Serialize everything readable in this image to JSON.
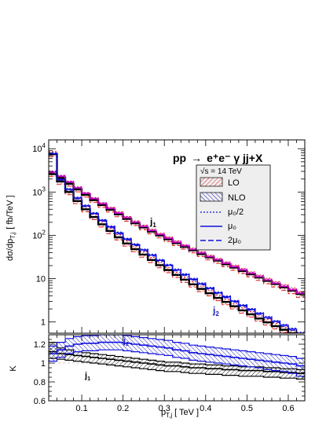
{
  "chart_data": [
    {
      "type": "line",
      "style": "histogram-step",
      "title": "pp → e⁺e⁻ γ jj+X",
      "title_parts": {
        "process_lhs": "pp",
        "arrow": "→",
        "process_rhs": "e⁺e⁻ γ jj+X"
      },
      "ylabel": "dσ/dp_{T,j} [ fb/TeV ]",
      "ylabel_parts": {
        "main": "dσ/dp",
        "sub": "T,j",
        "unit": "[ fb/TeV ]"
      },
      "yscale": "log",
      "ylim": [
        0.55,
        16000
      ],
      "yticks": [
        1,
        10,
        100,
        1000,
        10000
      ],
      "ytick_labels": [
        {
          "mant": "1",
          "exp": ""
        },
        {
          "mant": "10",
          "exp": ""
        },
        {
          "mant": "10",
          "exp": "2"
        },
        {
          "mant": "10",
          "exp": "3"
        },
        {
          "mant": "10",
          "exp": "4"
        }
      ],
      "xlim": [
        0.02,
        0.64
      ],
      "legend_placement": "top-right",
      "legend": {
        "header": "√s = 14 TeV",
        "items": [
          {
            "label": "LO",
            "style": "red-hatch-box"
          },
          {
            "label": "NLO",
            "style": "blue-hatch-box"
          },
          {
            "label": "μ₀/2",
            "style": "dotted"
          },
          {
            "label": "μ₀",
            "style": "solid"
          },
          {
            "label": "2μ₀",
            "style": "dashed"
          }
        ]
      },
      "annotations": [
        {
          "text": "j",
          "sub": "1",
          "color": "#000000"
        },
        {
          "text": "j",
          "sub": "2",
          "color": "#2020c0"
        }
      ],
      "bin_edges": [
        0.02,
        0.04,
        0.06,
        0.08,
        0.1,
        0.12,
        0.14,
        0.16,
        0.18,
        0.2,
        0.22,
        0.24,
        0.26,
        0.28,
        0.3,
        0.32,
        0.34,
        0.36,
        0.38,
        0.4,
        0.42,
        0.44,
        0.46,
        0.48,
        0.5,
        0.52,
        0.54,
        0.56,
        0.58,
        0.6,
        0.62,
        0.64
      ],
      "series": [
        {
          "jet": "j1",
          "order": "LO",
          "color": "#000000",
          "values": [
            2600,
            2100,
            1550,
            1150,
            860,
            650,
            500,
            390,
            305,
            240,
            190,
            152,
            122,
            99,
            81,
            66,
            54,
            45,
            37,
            31,
            26,
            21.5,
            18,
            15,
            12.6,
            10.6,
            8.9,
            7.5,
            6.3,
            5.3,
            4.4
          ],
          "band_lo": [
            2300,
            1850,
            1370,
            1010,
            760,
            575,
            440,
            345,
            270,
            212,
            168,
            134,
            108,
            87,
            71,
            58,
            48,
            39.5,
            32.5,
            27,
            22.5,
            18.8,
            15.6,
            13,
            10.9,
            9.1,
            7.6,
            6.4,
            5.4,
            4.5,
            3.7
          ],
          "band_hi": [
            2950,
            2380,
            1760,
            1300,
            975,
            740,
            570,
            445,
            348,
            274,
            216,
            173,
            139,
            112,
            92,
            75,
            61,
            51,
            42,
            35,
            29.5,
            24.5,
            20.5,
            17.2,
            14.4,
            12.1,
            10.2,
            8.6,
            7.3,
            6.1,
            5.1
          ]
        },
        {
          "jet": "j1",
          "order": "NLO",
          "color": "#c000c0",
          "values": [
            2900,
            2320,
            1700,
            1250,
            930,
            700,
            535,
            415,
            325,
            255,
            200,
            160,
            128,
            104,
            85,
            69,
            57,
            47,
            39,
            32,
            27,
            22.5,
            18.8,
            15.8,
            13.2,
            11.1,
            9.3,
            7.8,
            6.6,
            5.5,
            4.6
          ],
          "band_lo": [
            2760,
            2210,
            1620,
            1190,
            885,
            665,
            508,
            394,
            309,
            242,
            190,
            152,
            122,
            99,
            81,
            66,
            54,
            44.5,
            37,
            30.5,
            25.6,
            21.4,
            17.8,
            15,
            12.5,
            10.5,
            8.8,
            7.4,
            6.2,
            5.2,
            4.35
          ],
          "band_hi": [
            3050,
            2440,
            1790,
            1320,
            980,
            738,
            565,
            438,
            343,
            269,
            211,
            169,
            135,
            110,
            90,
            73,
            60,
            49.5,
            41,
            33.8,
            28.5,
            23.7,
            19.8,
            16.7,
            13.9,
            11.7,
            9.8,
            8.2,
            7,
            5.8,
            4.85
          ]
        },
        {
          "jet": "j2",
          "order": "LO",
          "color": "#000000",
          "values": [
            7500,
            1750,
            1000,
            620,
            400,
            265,
            180,
            126,
            90,
            65,
            48,
            36,
            27,
            20.5,
            15.8,
            12.2,
            9.5,
            7.4,
            5.8,
            4.6,
            3.6,
            2.9,
            2.3,
            1.85,
            1.5,
            1.2,
            0.98,
            0.8,
            0.66,
            0.55,
            0.46
          ],
          "band_lo": [
            6500,
            1520,
            870,
            540,
            348,
            230,
            156,
            109,
            78,
            56.5,
            41.7,
            31.3,
            23.5,
            17.8,
            13.7,
            10.6,
            8.2,
            6.4,
            5,
            4,
            3.1,
            2.5,
            2,
            1.6,
            1.3,
            1.04,
            0.85,
            0.69,
            0.57,
            0.47,
            0.39
          ],
          "band_hi": [
            8700,
            2020,
            1150,
            715,
            461,
            305,
            207,
            145,
            104,
            75,
            55,
            41.5,
            31,
            23.6,
            18.2,
            14,
            10.9,
            8.5,
            6.7,
            5.3,
            4.15,
            3.35,
            2.65,
            2.13,
            1.73,
            1.38,
            1.13,
            0.92,
            0.76,
            0.63,
            0.53
          ]
        },
        {
          "jet": "j2",
          "order": "NLO",
          "color": "#1010e0",
          "values": [
            7700,
            1950,
            1150,
            730,
            480,
            322,
            222,
            157,
            113,
            82,
            61,
            46,
            35,
            26.5,
            20.5,
            15.9,
            12.4,
            9.7,
            7.6,
            6,
            4.7,
            3.8,
            3,
            2.4,
            1.95,
            1.57,
            1.27,
            1.03,
            0.84,
            0.68,
            0.55
          ],
          "band_lo": [
            7300,
            1850,
            1090,
            693,
            456,
            306,
            211,
            149,
            107,
            78,
            58,
            43.7,
            33.2,
            25.2,
            19.5,
            15.1,
            11.8,
            9.2,
            7.2,
            5.7,
            4.47,
            3.6,
            2.85,
            2.28,
            1.85,
            1.49,
            1.2,
            0.97,
            0.79,
            0.64,
            0.52
          ],
          "band_hi": [
            8100,
            2050,
            1210,
            767,
            504,
            338,
            233,
            165,
            119,
            86,
            64,
            48.3,
            36.8,
            27.8,
            21.5,
            16.7,
            13,
            10.2,
            8,
            6.3,
            4.94,
            4,
            3.15,
            2.52,
            2.05,
            1.65,
            1.34,
            1.08,
            0.88,
            0.72,
            0.58
          ]
        }
      ]
    },
    {
      "type": "line",
      "style": "histogram-step",
      "ylabel": "K",
      "xlabel": "p_{T,j} [ TeV ]",
      "xlabel_parts": {
        "main": "p",
        "sub": "T,j",
        "unit": "[ TeV ]"
      },
      "xlim": [
        0.02,
        0.64
      ],
      "ylim": [
        0.6,
        1.3
      ],
      "yticks": [
        0.6,
        0.8,
        1.0,
        1.2
      ],
      "ytick_labels": [
        "0.6",
        "0.8",
        "1",
        "1.2"
      ],
      "xticks": [
        0.1,
        0.2,
        0.3,
        0.4,
        0.5,
        0.6
      ],
      "xtick_labels": [
        "0.1",
        "0.2",
        "0.3",
        "0.4",
        "0.5",
        "0.6"
      ],
      "annotations": [
        {
          "text": "j",
          "sub": "1",
          "color": "#000000"
        },
        {
          "text": "j",
          "sub": "2",
          "color": "#2020c0"
        }
      ],
      "bin_edges": [
        0.02,
        0.04,
        0.06,
        0.08,
        0.1,
        0.12,
        0.14,
        0.16,
        0.18,
        0.2,
        0.22,
        0.24,
        0.26,
        0.28,
        0.3,
        0.32,
        0.34,
        0.36,
        0.38,
        0.4,
        0.42,
        0.44,
        0.46,
        0.48,
        0.5,
        0.52,
        0.54,
        0.56,
        0.58,
        0.6,
        0.62,
        0.64
      ],
      "series": [
        {
          "jet": "j1",
          "color": "#000000",
          "values": [
            1.12,
            1.1,
            1.09,
            1.08,
            1.07,
            1.06,
            1.05,
            1.04,
            1.03,
            1.02,
            1.01,
            1.0,
            0.99,
            0.98,
            0.97,
            0.97,
            0.96,
            0.95,
            0.95,
            0.94,
            0.94,
            0.93,
            0.93,
            0.92,
            0.92,
            0.92,
            0.91,
            0.91,
            0.9,
            0.9,
            0.89
          ],
          "band_lo": [
            1.05,
            1.04,
            1.03,
            1.02,
            1.01,
            1.0,
            0.99,
            0.98,
            0.97,
            0.96,
            0.95,
            0.94,
            0.93,
            0.92,
            0.91,
            0.91,
            0.9,
            0.89,
            0.89,
            0.88,
            0.88,
            0.87,
            0.87,
            0.86,
            0.86,
            0.86,
            0.85,
            0.85,
            0.84,
            0.84,
            0.83
          ],
          "band_hi": [
            1.22,
            1.16,
            1.14,
            1.12,
            1.11,
            1.1,
            1.09,
            1.08,
            1.07,
            1.06,
            1.05,
            1.04,
            1.03,
            1.02,
            1.01,
            1.01,
            1.0,
            0.99,
            0.99,
            0.98,
            0.98,
            0.97,
            0.97,
            0.96,
            0.96,
            0.96,
            0.95,
            0.95,
            0.94,
            0.94,
            0.93
          ]
        },
        {
          "jet": "j2",
          "color": "#1010e0",
          "values": [
            1.1,
            1.14,
            1.18,
            1.2,
            1.21,
            1.21,
            1.22,
            1.22,
            1.22,
            1.21,
            1.2,
            1.19,
            1.18,
            1.17,
            1.16,
            1.14,
            1.13,
            1.11,
            1.1,
            1.09,
            1.08,
            1.07,
            1.06,
            1.05,
            1.04,
            1.03,
            1.02,
            1.01,
            1.0,
            0.99,
            0.97
          ],
          "band_lo": [
            1.02,
            1.06,
            1.1,
            1.12,
            1.13,
            1.13,
            1.14,
            1.14,
            1.14,
            1.13,
            1.12,
            1.11,
            1.1,
            1.09,
            1.08,
            1.06,
            1.05,
            1.03,
            1.02,
            1.01,
            1.0,
            0.99,
            0.98,
            0.97,
            0.96,
            0.95,
            0.93,
            0.92,
            0.91,
            0.89,
            0.86
          ],
          "band_hi": [
            1.18,
            1.22,
            1.26,
            1.28,
            1.29,
            1.29,
            1.3,
            1.3,
            1.3,
            1.29,
            1.28,
            1.27,
            1.26,
            1.25,
            1.24,
            1.22,
            1.21,
            1.19,
            1.18,
            1.17,
            1.16,
            1.15,
            1.14,
            1.13,
            1.12,
            1.11,
            1.1,
            1.09,
            1.08,
            1.07,
            1.05
          ]
        }
      ]
    }
  ]
}
